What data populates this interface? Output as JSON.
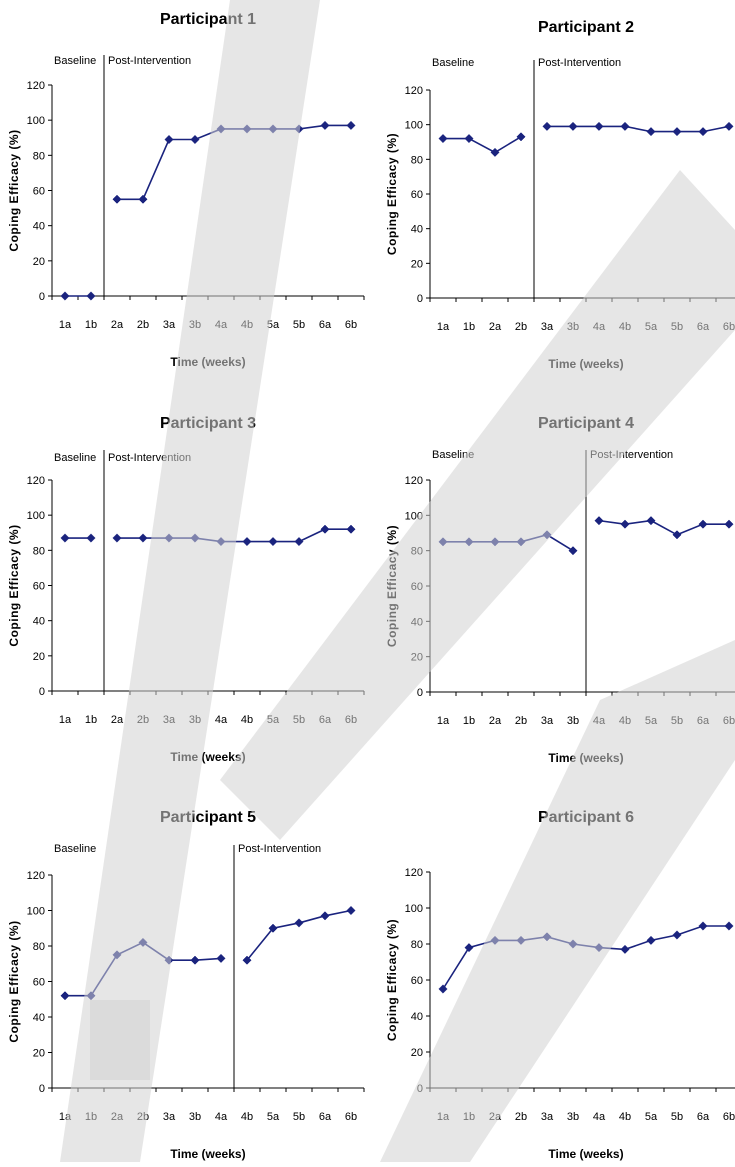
{
  "figure": {
    "ylabel": "Coping Efficacy (%)",
    "xlabel": "Time (weeks)",
    "baseline_label": "Baseline",
    "post_label": "Post-Intervention"
  },
  "chart_data": [
    {
      "type": "line",
      "title": "Participant 1",
      "xlabel": "Time (weeks)",
      "ylabel": "Coping Efficacy (%)",
      "ylim": [
        0,
        120
      ],
      "yticks": [
        0,
        20,
        40,
        60,
        80,
        100,
        120
      ],
      "categories": [
        "1a",
        "1b",
        "2a",
        "2b",
        "3a",
        "3b",
        "4a",
        "4b",
        "5a",
        "5b",
        "6a",
        "6b"
      ],
      "phase_labels": [
        "Baseline",
        "Post-Intervention"
      ],
      "phase_change_after": "1b",
      "segments": [
        {
          "x": [
            "1a",
            "1b"
          ],
          "y": [
            0,
            0
          ]
        },
        {
          "x": [
            "2a",
            "2b",
            "3a",
            "3b",
            "4a",
            "4b",
            "5a",
            "5b",
            "6a",
            "6b"
          ],
          "y": [
            55,
            55,
            89,
            89,
            95,
            95,
            95,
            95,
            97,
            97
          ]
        }
      ],
      "color": "#1a237e"
    },
    {
      "type": "line",
      "title": "Participant 2",
      "xlabel": "Time (weeks)",
      "ylabel": "Coping Efficacy (%)",
      "ylim": [
        0,
        120
      ],
      "yticks": [
        0,
        20,
        40,
        60,
        80,
        100,
        120
      ],
      "categories": [
        "1a",
        "1b",
        "2a",
        "2b",
        "3a",
        "3b",
        "4a",
        "4b",
        "5a",
        "5b",
        "6a",
        "6b"
      ],
      "phase_labels": [
        "Baseline",
        "Post-Intervention"
      ],
      "phase_change_after": "2b",
      "segments": [
        {
          "x": [
            "1a",
            "1b",
            "2a",
            "2b"
          ],
          "y": [
            92,
            92,
            84,
            93
          ]
        },
        {
          "x": [
            "3a",
            "3b",
            "4a",
            "4b",
            "5a",
            "5b",
            "6a",
            "6b"
          ],
          "y": [
            99,
            99,
            99,
            99,
            96,
            96,
            96,
            99
          ]
        }
      ],
      "color": "#1a237e"
    },
    {
      "type": "line",
      "title": "Participant 3",
      "xlabel": "Time (weeks)",
      "ylabel": "Coping Efficacy (%)",
      "ylim": [
        0,
        120
      ],
      "yticks": [
        0,
        20,
        40,
        60,
        80,
        100,
        120
      ],
      "categories": [
        "1a",
        "1b",
        "2a",
        "2b",
        "3a",
        "3b",
        "4a",
        "4b",
        "5a",
        "5b",
        "6a",
        "6b"
      ],
      "phase_labels": [
        "Baseline",
        "Post-Intervention"
      ],
      "phase_change_after": "1b",
      "segments": [
        {
          "x": [
            "1a",
            "1b"
          ],
          "y": [
            87,
            87
          ]
        },
        {
          "x": [
            "2a",
            "2b",
            "3a",
            "3b",
            "4a",
            "4b",
            "5a",
            "5b",
            "6a",
            "6b"
          ],
          "y": [
            87,
            87,
            87,
            87,
            85,
            85,
            85,
            85,
            92,
            92
          ]
        }
      ],
      "color": "#1a237e"
    },
    {
      "type": "line",
      "title": "Participant 4",
      "xlabel": "Time (weeks)",
      "ylabel": "Coping Efficacy (%)",
      "ylim": [
        0,
        120
      ],
      "yticks": [
        0,
        20,
        40,
        60,
        80,
        100,
        120
      ],
      "categories": [
        "1a",
        "1b",
        "2a",
        "2b",
        "3a",
        "3b",
        "4a",
        "4b",
        "5a",
        "5b",
        "6a",
        "6b"
      ],
      "phase_labels": [
        "Baseline",
        "Post-Intervention"
      ],
      "phase_change_after": "3b",
      "segments": [
        {
          "x": [
            "1a",
            "1b",
            "2a",
            "2b",
            "3a",
            "3b"
          ],
          "y": [
            85,
            85,
            85,
            85,
            89,
            80
          ]
        },
        {
          "x": [
            "4a",
            "4b",
            "5a",
            "5b",
            "6a",
            "6b"
          ],
          "y": [
            97,
            95,
            97,
            89,
            95,
            95
          ]
        }
      ],
      "color": "#1a237e"
    },
    {
      "type": "line",
      "title": "Participant 5",
      "xlabel": "Time (weeks)",
      "ylabel": "Coping Efficacy (%)",
      "ylim": [
        0,
        120
      ],
      "yticks": [
        0,
        20,
        40,
        60,
        80,
        100,
        120
      ],
      "categories": [
        "1a",
        "1b",
        "2a",
        "2b",
        "3a",
        "3b",
        "4a",
        "4b",
        "5a",
        "5b",
        "6a",
        "6b"
      ],
      "phase_labels": [
        "Baseline",
        "Post-Intervention"
      ],
      "phase_change_after": "4a",
      "segments": [
        {
          "x": [
            "1a",
            "1b",
            "2a",
            "2b",
            "3a",
            "3b",
            "4a"
          ],
          "y": [
            52,
            52,
            75,
            82,
            72,
            72,
            73
          ]
        },
        {
          "x": [
            "4b",
            "5a",
            "5b",
            "6a",
            "6b"
          ],
          "y": [
            72,
            90,
            93,
            97,
            100
          ]
        }
      ],
      "color": "#1a237e"
    },
    {
      "type": "line",
      "title": "Participant 6",
      "xlabel": "Time (weeks)",
      "ylabel": "Coping Efficacy (%)",
      "ylim": [
        0,
        120
      ],
      "yticks": [
        0,
        20,
        40,
        60,
        80,
        100,
        120
      ],
      "categories": [
        "1a",
        "1b",
        "2a",
        "2b",
        "3a",
        "3b",
        "4a",
        "4b",
        "5a",
        "5b",
        "6a",
        "6b"
      ],
      "phase_labels": [],
      "phase_change_after": null,
      "segments": [
        {
          "x": [
            "1a",
            "1b",
            "2a",
            "2b",
            "3a",
            "3b",
            "4a",
            "4b",
            "5a",
            "5b",
            "6a",
            "6b"
          ],
          "y": [
            55,
            78,
            82,
            82,
            84,
            80,
            78,
            77,
            82,
            85,
            90,
            90
          ]
        }
      ],
      "color": "#1a237e"
    }
  ]
}
